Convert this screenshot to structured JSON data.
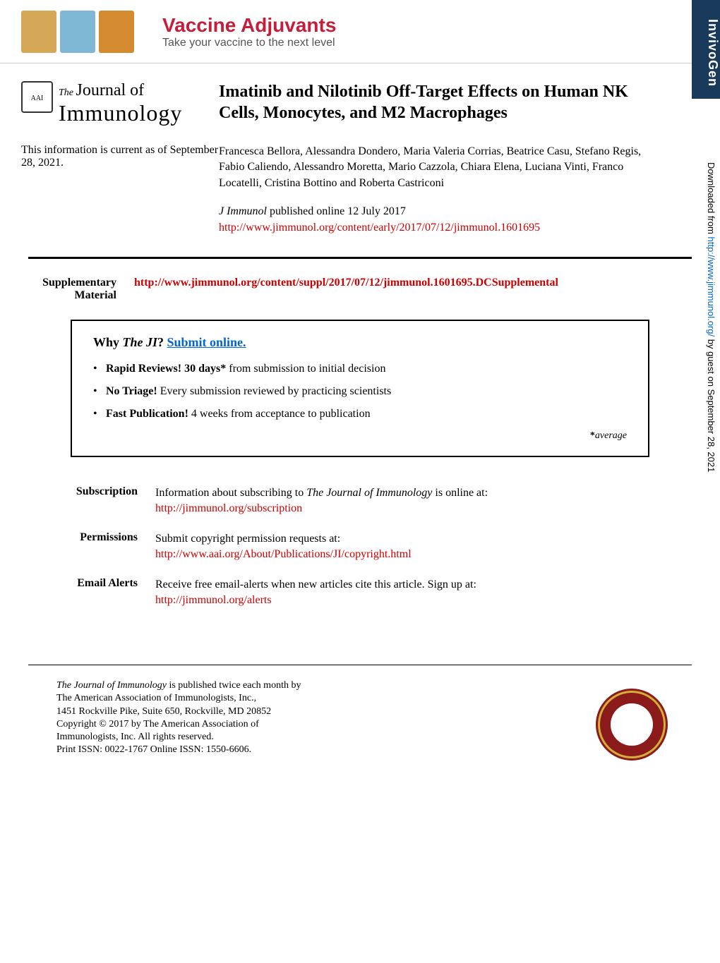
{
  "banner": {
    "title": "Vaccine Adjuvants",
    "subtitle": "Take your vaccine to the next level",
    "sponsor": "InvivoGen",
    "bottle_colors": [
      "#d4a857",
      "#7fb8d4",
      "#d48a2f"
    ],
    "title_color": "#c41e3a"
  },
  "journal_logo": {
    "the": "The",
    "journal": "Journal of",
    "immunology": "Immunology",
    "emblem_text": "AAI"
  },
  "article": {
    "title": "Imatinib and Nilotinib Off-Target Effects on Human NK Cells, Monocytes, and M2 Macrophages",
    "authors": "Francesca Bellora, Alessandra Dondero, Maria Valeria Corrias, Beatrice Casu, Stefano Regis, Fabio Caliendo, Alessandro Moretta, Mario Cazzola, Chiara Elena, Luciana Vinti, Franco Locatelli, Cristina Bottino and Roberta Castriconi"
  },
  "current_info": {
    "label": "This information is current as of September 28, 2021."
  },
  "publication": {
    "journal": "J Immunol",
    "note": " published online 12 July 2017",
    "url": "http://www.jimmunol.org/content/early/2017/07/12/jimmunol.1601695"
  },
  "supplementary": {
    "label_line1": "Supplementary",
    "label_line2": "Material",
    "url": "http://www.jimmunol.org/content/suppl/2017/07/12/jimmunol.1601695.DCSupplemental"
  },
  "why_box": {
    "why": "Why ",
    "ji": "The JI",
    "question": "? ",
    "submit": "Submit online.",
    "items": [
      {
        "bold": "Rapid Reviews! 30 days*",
        "rest": " from submission to initial decision"
      },
      {
        "bold": "No Triage!",
        "rest": " Every submission reviewed by practicing scientists"
      },
      {
        "bold": "Fast Publication!",
        "rest": " 4 weeks from acceptance to publication"
      }
    ],
    "avg_star": "*",
    "avg_word": "average"
  },
  "links": {
    "subscription": {
      "label": "Subscription",
      "text_pre": "Information about subscribing to ",
      "text_ital": "The Journal of Immunology",
      "text_post": " is online at:",
      "url": "http://jimmunol.org/subscription"
    },
    "permissions": {
      "label": "Permissions",
      "text": "Submit copyright permission requests at:",
      "url": "http://www.aai.org/About/Publications/JI/copyright.html"
    },
    "alerts": {
      "label": "Email Alerts",
      "text": "Receive free email-alerts when new articles cite this article. Sign up at:",
      "url": "http://jimmunol.org/alerts"
    }
  },
  "footer": {
    "line1_ital": "The Journal of Immunology",
    "line1_rest": " is published twice each month by",
    "line2": "The American Association of Immunologists, Inc.,",
    "line3": "1451 Rockville Pike, Suite 650, Rockville, MD 20852",
    "line4": "Copyright © 2017 by The American Association of",
    "line5": "Immunologists, Inc. All rights reserved.",
    "line6": "Print ISSN: 0022-1767 Online ISSN: 1550-6606."
  },
  "sidebar": {
    "pre": "Downloaded from ",
    "url": "http://www.jimmunol.org/",
    "post": " by guest on September 28, 2021"
  },
  "colors": {
    "link": "#cc0000",
    "submit_link": "#0066cc",
    "banner_title": "#c41e3a",
    "invivogen_bg": "#1a3a5c",
    "emblem_bg": "#8b1a1a",
    "emblem_ring": "#d4af37"
  }
}
